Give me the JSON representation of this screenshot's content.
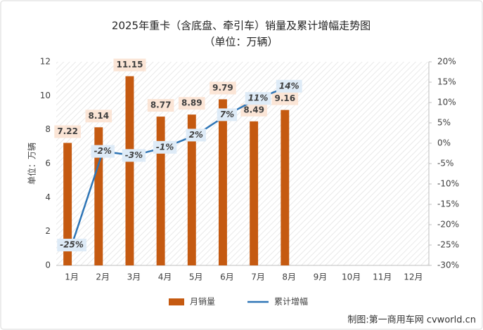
{
  "chart_data": {
    "type": "bar",
    "title": "2025年重卡（含底盘、牵引车）销量及累计增幅走势图",
    "subtitle": "（单位：万辆）",
    "y_label": "单位：万辆",
    "source": "制图:第一商用车网 cvworld.cn",
    "categories": [
      "1月",
      "2月",
      "3月",
      "4月",
      "5月",
      "6月",
      "7月",
      "8月",
      "9月",
      "10月",
      "11月",
      "12月"
    ],
    "series": [
      {
        "name": "月销量",
        "type": "bar",
        "color": "#c55a11",
        "values": [
          7.22,
          8.14,
          11.15,
          8.77,
          8.89,
          9.79,
          8.49,
          9.16,
          null,
          null,
          null,
          null
        ]
      },
      {
        "name": "累计增幅",
        "type": "line",
        "axis": "y2",
        "color": "#2e75b6",
        "values": [
          -25,
          -2,
          -3,
          -1,
          2,
          7,
          11,
          14,
          null,
          null,
          null,
          null
        ],
        "value_labels": [
          "-25%",
          "-2%",
          "-3%",
          "-1%",
          "2%",
          "7%",
          "11%",
          "14%",
          null,
          null,
          null,
          null
        ]
      }
    ],
    "ylim": [
      0,
      12
    ],
    "yticks": [
      0,
      2,
      4,
      6,
      8,
      10,
      12
    ],
    "y2lim": [
      -30,
      20
    ],
    "y2ticks": [
      {
        "value": -30,
        "label": "-30%"
      },
      {
        "value": -25,
        "label": "-25%"
      },
      {
        "value": -20,
        "label": "-20%"
      },
      {
        "value": -15,
        "label": "-15%"
      },
      {
        "value": -10,
        "label": "-10%"
      },
      {
        "value": -5,
        "label": "-5%"
      },
      {
        "value": 0,
        "label": "0%"
      },
      {
        "value": 5,
        "label": "5%"
      },
      {
        "value": 10,
        "label": "10%"
      },
      {
        "value": 15,
        "label": "15%"
      },
      {
        "value": 20,
        "label": "20%"
      }
    ]
  }
}
